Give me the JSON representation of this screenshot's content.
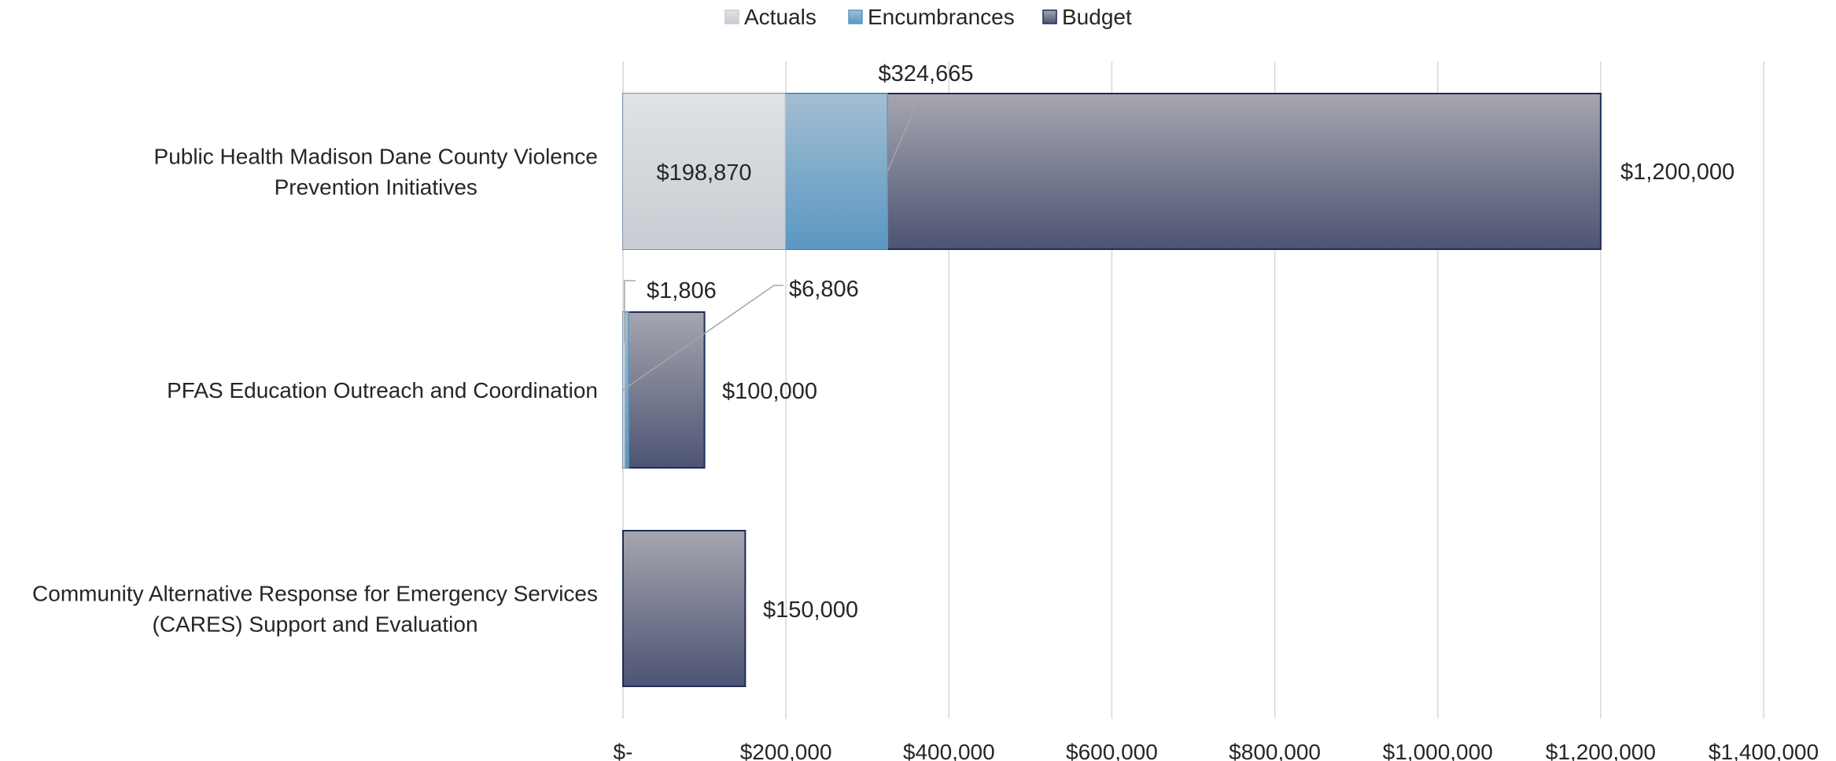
{
  "chart_data": {
    "type": "bar",
    "orientation": "horizontal",
    "stacked": true,
    "title": "",
    "xlabel": "",
    "ylabel": "",
    "xlim": [
      0,
      1400000
    ],
    "x_ticks": [
      0,
      200000,
      400000,
      600000,
      800000,
      1000000,
      1200000,
      1400000
    ],
    "x_tick_labels": [
      "$-",
      "$200,000",
      "$400,000",
      "$600,000",
      "$800,000",
      "$1,000,000",
      "$1,200,000",
      "$1,400,000"
    ],
    "grid": "vertical",
    "legend_position": "top",
    "categories": [
      {
        "lines": [
          "Public Health Madison Dane County Violence",
          "Prevention Initiatives"
        ],
        "actuals": 198870,
        "encumbrances_end": 324665,
        "budget": 1200000,
        "labels": {
          "actuals": "$198,870",
          "encumbrances": "$324,665",
          "budget": "$1,200,000"
        }
      },
      {
        "lines": [
          "PFAS Education Outreach and Coordination"
        ],
        "actuals": 1806,
        "encumbrances_end": 6806,
        "budget": 100000,
        "labels": {
          "actuals": "$1,806",
          "encumbrances": "$6,806",
          "budget": "$100,000"
        }
      },
      {
        "lines": [
          "Community Alternative Response for Emergency Services",
          "(CARES) Support and Evaluation"
        ],
        "actuals": 0,
        "encumbrances_end": 0,
        "budget": 150000,
        "labels": {
          "budget": "$150,000"
        }
      }
    ],
    "series": [
      {
        "name": "Actuals",
        "color": "#d3d6db"
      },
      {
        "name": "Encumbrances",
        "color": "#7fa7c8"
      },
      {
        "name": "Budget",
        "color": "#6b6f86"
      }
    ]
  }
}
